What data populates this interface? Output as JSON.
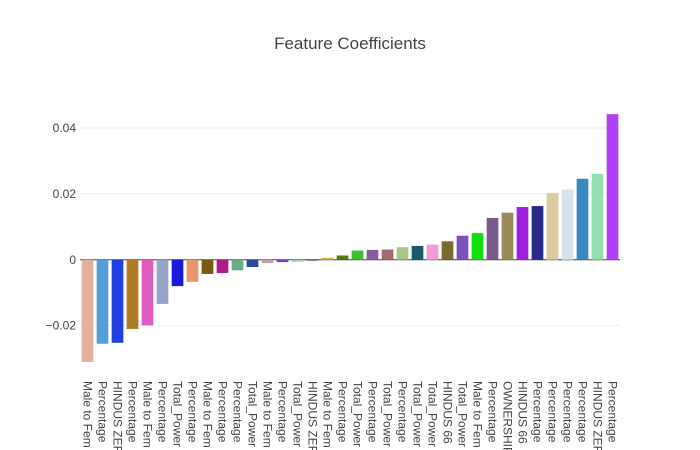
{
  "chart_data": {
    "type": "bar",
    "title": "Feature Coefficients",
    "xlabel": "",
    "ylabel": "",
    "ylim": [
      -0.0365,
      0.0485
    ],
    "yticks": [
      -0.02,
      0,
      0.02,
      0.04
    ],
    "ytick_labels": [
      "−0.02",
      "0",
      "0.02",
      "0.04"
    ],
    "grid": true,
    "categories": [
      "Male to Fem",
      "Percentage",
      "HINDUS ZEF",
      "Percentage",
      "Male to Fem",
      "Percentage",
      "Total_Power",
      "Percentage",
      "Male to Fem",
      "Percentage",
      "Percentage",
      "Total_Power",
      "Male to Fem",
      "Percentage",
      "Total_Power",
      "HINDUS ZEF",
      "Male to Fem",
      "Percentage",
      "Total_Power",
      "Percentage",
      "Total_Power",
      "Percentage",
      "Total_Power",
      "Total_Power",
      "HINDUS 66",
      "Total_Power",
      "Male to Fem",
      "Percentage",
      "OWNERSHIP",
      "HINDUS 66",
      "Percentage",
      "Percentage",
      "Percentage",
      "Percentage",
      "HINDUS ZEF",
      "Percentage"
    ],
    "values": [
      -0.031,
      -0.0255,
      -0.0252,
      -0.021,
      -0.0199,
      -0.0134,
      -0.008,
      -0.0067,
      -0.0043,
      -0.004,
      -0.0032,
      -0.0022,
      -0.001,
      -0.0007,
      -0.0006,
      -0.0002,
      0.0006,
      0.0013,
      0.0028,
      0.003,
      0.0031,
      0.0038,
      0.0042,
      0.0046,
      0.0056,
      0.0073,
      0.0081,
      0.0127,
      0.0143,
      0.016,
      0.0163,
      0.0203,
      0.0213,
      0.0246,
      0.0261,
      0.0442
    ],
    "colors": [
      "#e3b09c",
      "#559fd6",
      "#1f3fe0",
      "#b07a26",
      "#e05cc0",
      "#98a4c6",
      "#1a1ad8",
      "#e8986a",
      "#7a5a10",
      "#b01a8a",
      "#6aab8a",
      "#2a4a9a",
      "#c0a0a8",
      "#7a3ad0",
      "#a0d0a0",
      "#3a3a3a",
      "#e0b040",
      "#5a7a10",
      "#3ac030",
      "#8a5a9a",
      "#a06a70",
      "#a6c88a",
      "#1a5a6a",
      "#f49ad8",
      "#7a6a30",
      "#7a52b8",
      "#10e010",
      "#7a5a8a",
      "#9a8a5a",
      "#a020e0",
      "#2a2a8a",
      "#dccaa0",
      "#d6e4ea",
      "#3a8ac0",
      "#90e0b0",
      "#b040f8"
    ]
  }
}
